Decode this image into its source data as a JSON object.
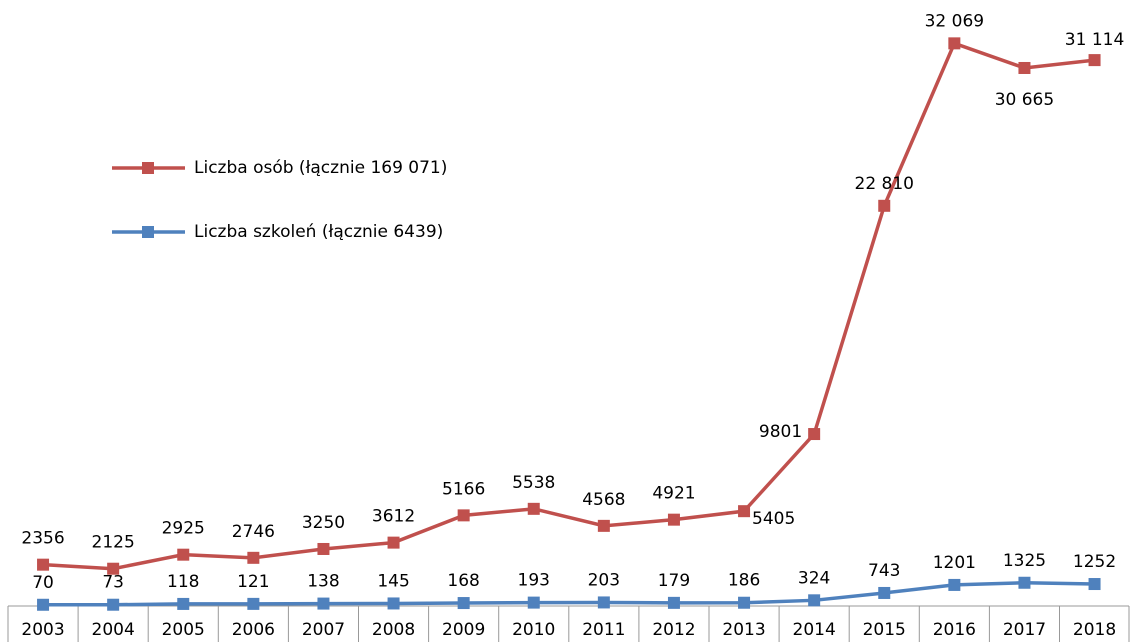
{
  "chart_data": {
    "type": "line",
    "categories": [
      "2003",
      "2004",
      "2005",
      "2006",
      "2007",
      "2008",
      "2009",
      "2010",
      "2011",
      "2012",
      "2013",
      "2014",
      "2015",
      "2016",
      "2017",
      "2018"
    ],
    "series": [
      {
        "name": "Liczba osób (łącznie 169 071)",
        "color": "#c0504d",
        "values": [
          2356,
          2125,
          2925,
          2746,
          3250,
          3612,
          5166,
          5538,
          4568,
          4921,
          5405,
          9801,
          22810,
          32069,
          30665,
          31114
        ],
        "value_labels": [
          "2356",
          "2125",
          "2925",
          "2746",
          "3250",
          "3612",
          "5166",
          "5538",
          "4568",
          "4921",
          "5405",
          "9801",
          "22 810",
          "32 069",
          "30 665",
          "31 114"
        ]
      },
      {
        "name": "Liczba szkoleń (łącznie 6439)",
        "color": "#4f81bd",
        "values": [
          70,
          73,
          118,
          121,
          138,
          145,
          168,
          193,
          203,
          179,
          186,
          324,
          743,
          1201,
          1325,
          1252
        ]
      }
    ],
    "ylim": [
      0,
      33400
    ]
  }
}
